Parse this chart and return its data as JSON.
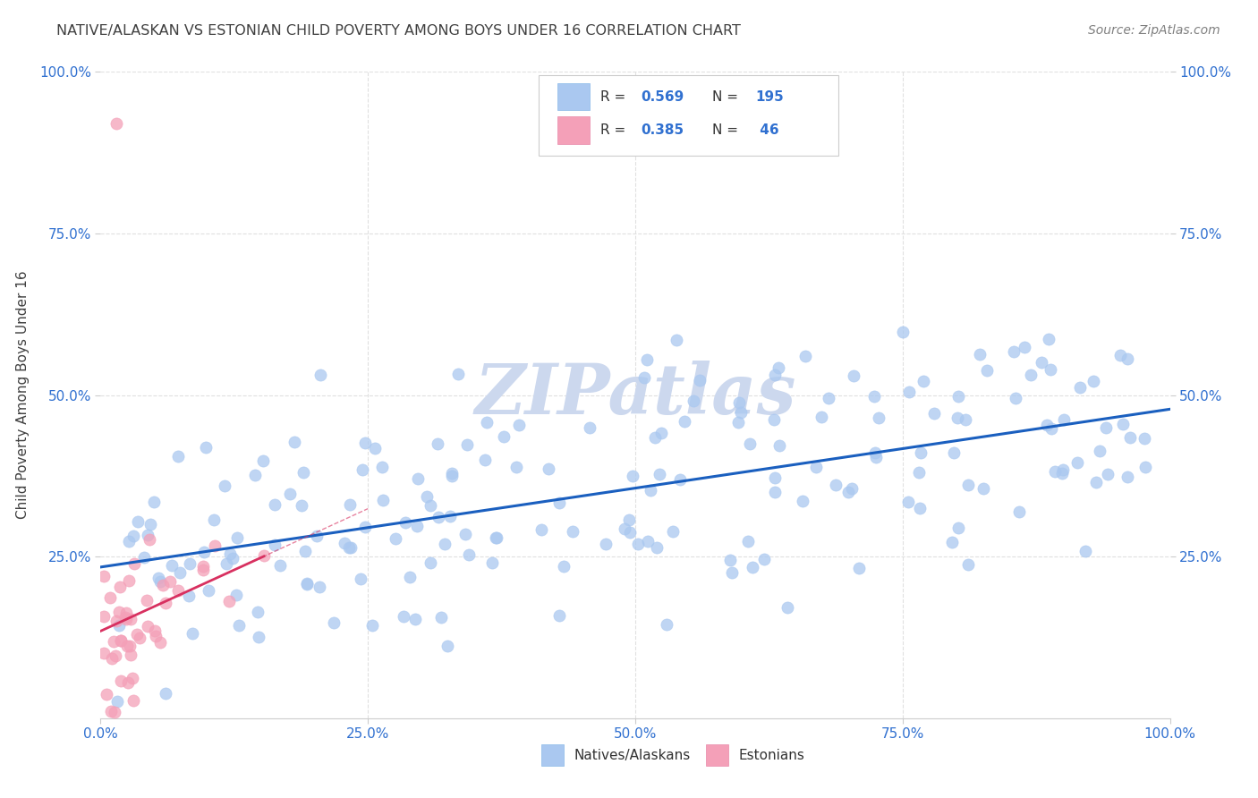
{
  "title": "NATIVE/ALASKAN VS ESTONIAN CHILD POVERTY AMONG BOYS UNDER 16 CORRELATION CHART",
  "source": "Source: ZipAtlas.com",
  "ylabel": "Child Poverty Among Boys Under 16",
  "xlim": [
    0.0,
    1.0
  ],
  "ylim": [
    0.0,
    1.0
  ],
  "xtick_labels": [
    "0.0%",
    "25.0%",
    "50.0%",
    "75.0%",
    "100.0%"
  ],
  "xtick_vals": [
    0.0,
    0.25,
    0.5,
    0.75,
    1.0
  ],
  "ytick_labels": [
    "25.0%",
    "50.0%",
    "75.0%",
    "100.0%"
  ],
  "ytick_vals": [
    0.25,
    0.5,
    0.75,
    1.0
  ],
  "blue_R": 0.569,
  "blue_N": 195,
  "pink_R": 0.385,
  "pink_N": 46,
  "blue_color": "#aac8f0",
  "pink_color": "#f4a0b8",
  "blue_line_color": "#1a5fbf",
  "pink_line_color": "#d83060",
  "legend_R_color": "#3070d0",
  "watermark_color": "#ccd8ee",
  "background_color": "#ffffff",
  "grid_color": "#e0e0e0",
  "title_color": "#404040",
  "axis_label_color": "#404040",
  "tick_label_color": "#3070d0",
  "source_color": "#808080"
}
